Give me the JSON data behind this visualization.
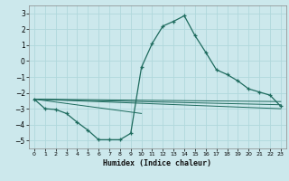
{
  "title": "",
  "xlabel": "Humidex (Indice chaleur)",
  "ylabel": "",
  "bg_color": "#cce8ec",
  "grid_color": "#b0d8dc",
  "line_color": "#1e6b5e",
  "xlim": [
    -0.5,
    23.5
  ],
  "ylim": [
    -5.5,
    3.5
  ],
  "yticks": [
    -5,
    -4,
    -3,
    -2,
    -1,
    0,
    1,
    2,
    3
  ],
  "xtick_labels": [
    "0",
    "1",
    "2",
    "3",
    "4",
    "5",
    "6",
    "7",
    "8",
    "9",
    "10",
    "11",
    "12",
    "13",
    "14",
    "15",
    "16",
    "17",
    "18",
    "19",
    "20",
    "21",
    "22",
    "23"
  ],
  "main_curve_x": [
    0,
    1,
    2,
    3,
    4,
    5,
    6,
    7,
    8,
    9,
    10,
    11,
    12,
    13,
    14,
    15,
    16,
    17,
    18,
    19,
    20,
    21,
    22,
    23
  ],
  "main_curve_y": [
    -2.4,
    -3.0,
    -3.05,
    -3.3,
    -3.85,
    -4.35,
    -4.95,
    -4.95,
    -4.95,
    -4.55,
    -0.4,
    1.1,
    2.2,
    2.5,
    2.85,
    1.6,
    0.55,
    -0.55,
    -0.85,
    -1.25,
    -1.75,
    -1.95,
    -2.15,
    -2.85
  ],
  "line1_x": [
    0,
    23
  ],
  "line1_y": [
    -2.4,
    -3.0
  ],
  "line2_x": [
    0,
    23
  ],
  "line2_y": [
    -2.4,
    -2.55
  ],
  "line3_x": [
    0,
    23
  ],
  "line3_y": [
    -2.4,
    -2.75
  ],
  "line4_x": [
    0,
    10
  ],
  "line4_y": [
    -2.4,
    -3.3
  ]
}
